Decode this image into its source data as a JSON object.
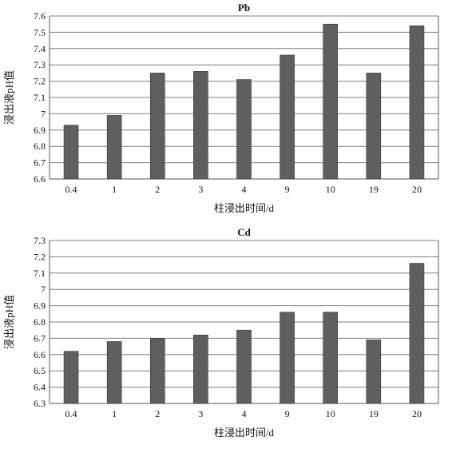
{
  "chart_data": [
    {
      "type": "bar",
      "title": "Pb",
      "xlabel": "柱浸出时间/d",
      "ylabel": "浸出液pH值",
      "categories": [
        "0.4",
        "1",
        "2",
        "3",
        "4",
        "9",
        "10",
        "19",
        "20"
      ],
      "values": [
        6.93,
        6.99,
        7.25,
        7.26,
        7.21,
        7.36,
        7.55,
        7.25,
        7.54
      ],
      "ylim": [
        6.6,
        7.6
      ],
      "yticks": [
        "6.6",
        "6.7",
        "6.8",
        "6.9",
        "7",
        "7.1",
        "7.2",
        "7.3",
        "7.4",
        "7.5",
        "7.6"
      ],
      "grid": true,
      "bar_color": "#5f5f5f"
    },
    {
      "type": "bar",
      "title": "Cd",
      "xlabel": "柱浸出时间/d",
      "ylabel": "浸出液pH值",
      "categories": [
        "0.4",
        "1",
        "2",
        "3",
        "4",
        "9",
        "10",
        "19",
        "20"
      ],
      "values": [
        6.62,
        6.68,
        6.7,
        6.72,
        6.75,
        6.86,
        6.86,
        6.69,
        7.16
      ],
      "ylim": [
        6.3,
        7.3
      ],
      "yticks": [
        "6.3",
        "6.4",
        "6.5",
        "6.6",
        "6.7",
        "6.8",
        "6.9",
        "7",
        "7.1",
        "7.2",
        "7.3"
      ],
      "grid": true,
      "bar_color": "#5f5f5f"
    }
  ]
}
